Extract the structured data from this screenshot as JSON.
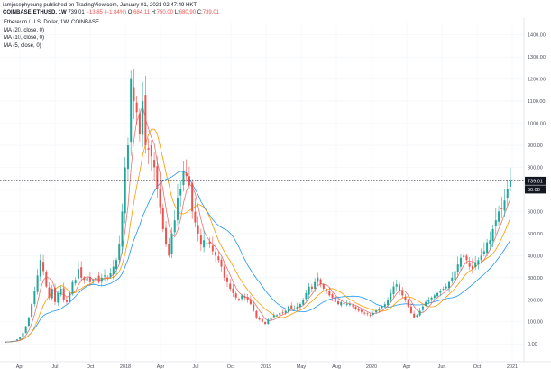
{
  "header": {
    "publisher_line": "iamjosephyoung published on TradingView.com, January 01, 2021 02:47:49 HKT",
    "symbol": "COINBASE:ETHUSD, 1W",
    "last": "739.01",
    "change": "−13.85 (−1.84%)",
    "ohlc": "O:",
    "o_val": "684.11",
    "h_label": "H:",
    "h_val": "750.00",
    "l_label": "L:",
    "l_val": "680.90",
    "c_label": "C:",
    "c_val": "739.01"
  },
  "legend": {
    "title": "Ethereum / U.S. Dollar, 1W, COINBASE",
    "ma1": "MA (20, close, 0)",
    "ma2": "MA (10, close, 0)",
    "ma3": "MA (5, close, 0)"
  },
  "price_label": "739.01",
  "time_label": "50:08",
  "colors": {
    "up": "#26a69a",
    "down": "#ef5350",
    "ma20": "#2196f3",
    "ma10": "#ff9800",
    "ma5": "#e57373",
    "price_line": "#131722"
  },
  "chart_data": {
    "type": "candlestick",
    "y_axis": {
      "ticks": [
        0,
        100,
        200,
        300,
        400,
        500,
        600,
        700,
        800,
        900,
        1000,
        1100,
        1200,
        1300,
        1400
      ],
      "tick_labels": [
        "0.00",
        "100.00",
        "200.00",
        "300.00",
        "400.00",
        "500.00",
        "600.00",
        "700.00",
        "800.00",
        "900.00",
        "1000.00",
        "1100.00",
        "1200.00",
        "1300.00",
        "1400.00"
      ],
      "range": [
        -40,
        1460
      ]
    },
    "x_axis": {
      "labels": [
        "Apr",
        "Jul",
        "Oct",
        "2018",
        "Apr",
        "Jul",
        "Oct",
        "2019",
        "May",
        "Aug",
        "2020",
        "Apr",
        "Jun",
        "Oct",
        "2021"
      ]
    },
    "last_price": 739.01,
    "close_path": [
      8,
      10,
      12,
      15,
      20,
      30,
      50,
      80,
      120,
      180,
      240,
      310,
      380,
      330,
      260,
      210,
      250,
      190,
      230,
      250,
      200,
      190,
      230,
      280,
      290,
      340,
      300,
      290,
      300,
      280,
      290,
      300,
      280,
      300,
      310,
      300,
      320,
      350,
      380,
      450,
      600,
      800,
      900,
      1200,
      1100,
      1050,
      950,
      1100,
      900,
      880,
      850,
      800,
      700,
      620,
      520,
      450,
      400,
      500,
      560,
      660,
      700,
      780,
      760,
      720,
      600,
      550,
      500,
      450,
      470,
      460,
      450,
      420,
      400,
      380,
      350,
      300,
      280,
      250,
      230,
      210,
      200,
      220,
      210,
      200,
      180,
      150,
      120,
      110,
      100,
      90,
      110,
      120,
      130,
      130,
      140,
      140,
      150,
      170,
      160,
      160,
      170,
      180,
      200,
      230,
      260,
      250,
      280,
      300,
      270,
      250,
      240,
      220,
      210,
      190,
      180,
      190,
      180,
      180,
      180,
      170,
      160,
      150,
      145,
      140,
      135,
      130,
      140,
      150,
      160,
      170,
      180,
      200,
      230,
      260,
      270,
      240,
      220,
      200,
      170,
      140,
      120,
      130,
      150,
      170,
      190,
      200,
      210,
      220,
      230,
      240,
      250,
      260,
      280,
      300,
      330,
      360,
      390,
      400,
      380,
      350,
      340,
      370,
      380,
      400,
      420,
      460,
      470,
      520,
      560,
      600,
      610,
      650,
      700,
      739
    ]
  }
}
